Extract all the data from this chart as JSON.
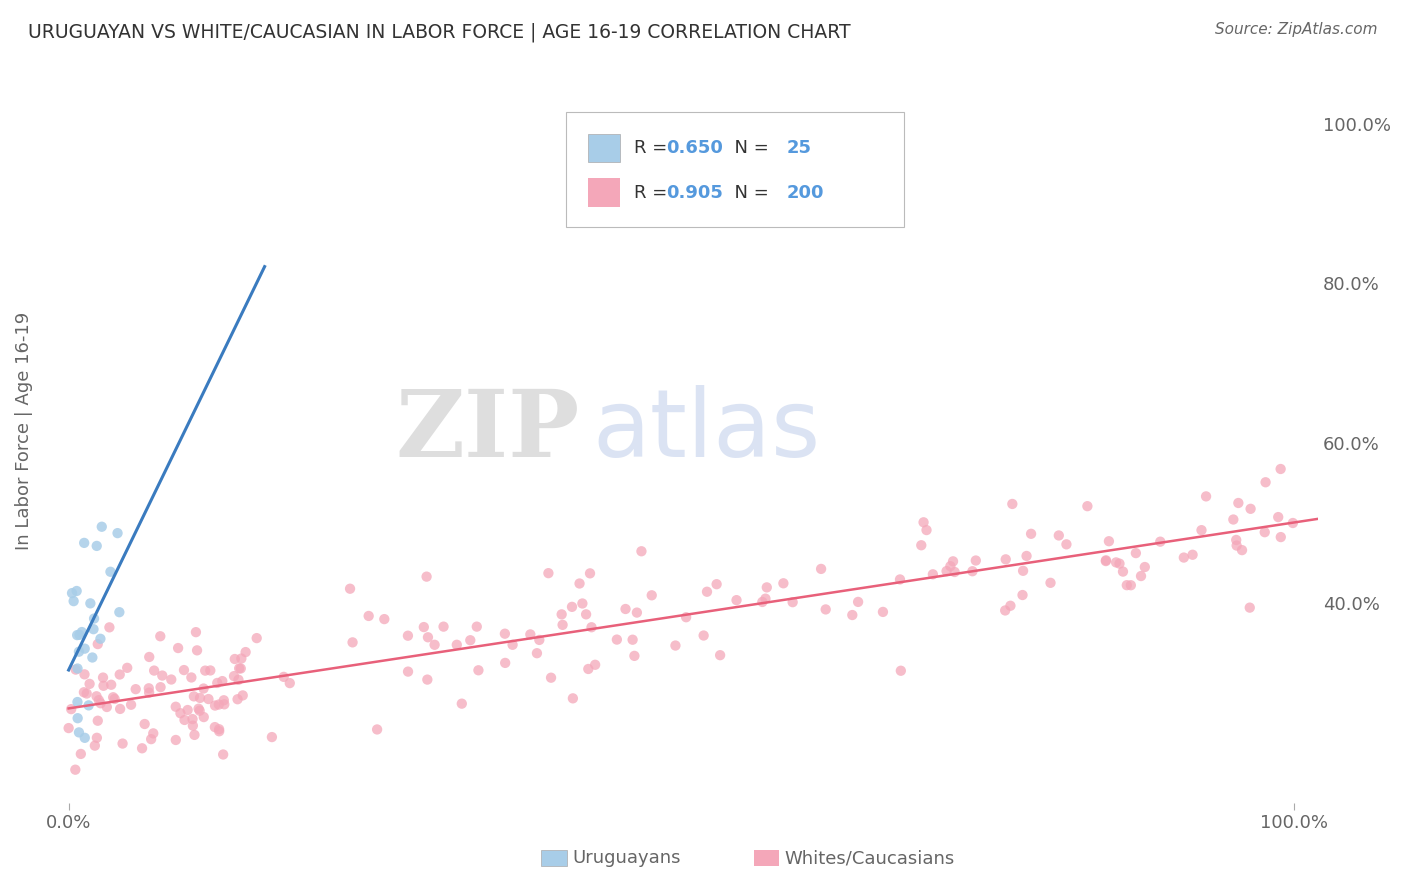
{
  "title": "URUGUAYAN VS WHITE/CAUCASIAN IN LABOR FORCE | AGE 16-19 CORRELATION CHART",
  "source": "Source: ZipAtlas.com",
  "ylabel": "In Labor Force | Age 16-19",
  "watermark_zip": "ZIP",
  "watermark_atlas": "atlas",
  "legend_blue_R": "0.650",
  "legend_blue_N": "25",
  "legend_pink_R": "0.905",
  "legend_pink_N": "200",
  "blue_scatter_color": "#a8cde8",
  "pink_scatter_color": "#f4a7b9",
  "blue_line_color": "#3a7bbf",
  "pink_line_color": "#e8607a",
  "axis_label_color": "#666666",
  "title_color": "#333333",
  "number_color": "#5599dd",
  "background_color": "#ffffff",
  "grid_color": "#e0e0e0",
  "xlim": [
    -0.02,
    1.02
  ],
  "ylim": [
    0.15,
    1.08
  ],
  "right_yticks": [
    0.4,
    0.6,
    0.8,
    1.0
  ],
  "right_yticklabels": [
    "40.0%",
    "60.0%",
    "80.0%",
    "100.0%"
  ],
  "seed": 99
}
